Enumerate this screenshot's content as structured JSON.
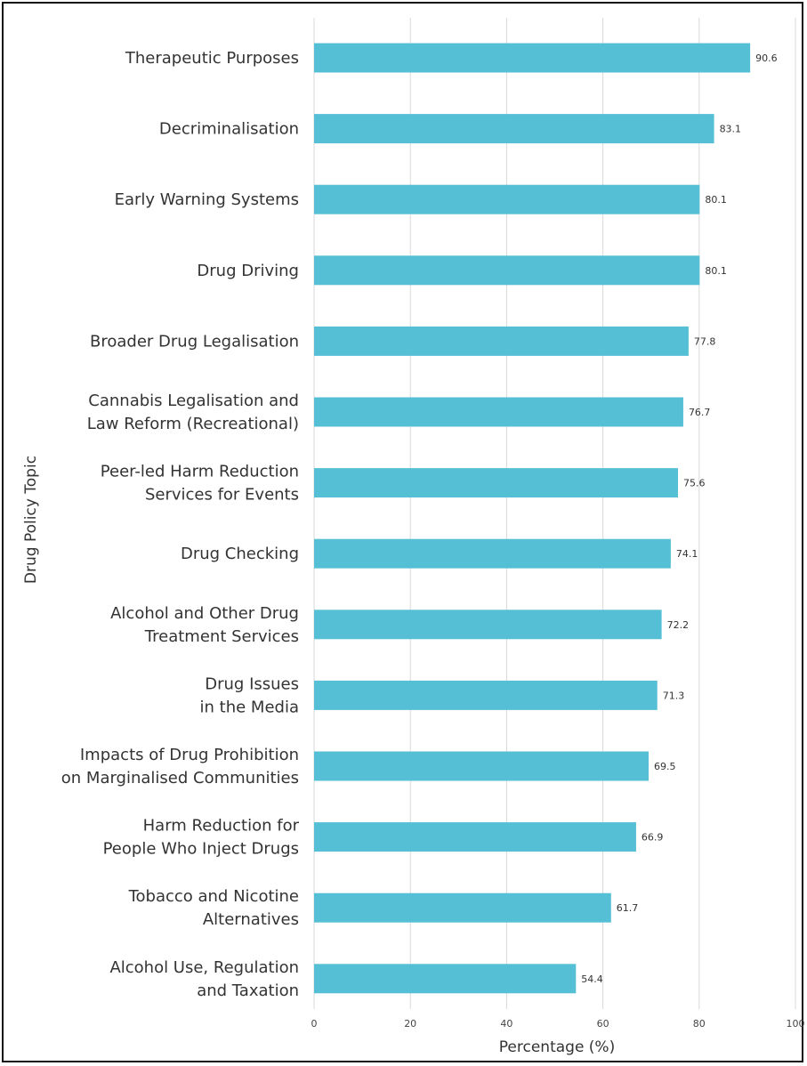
{
  "chart_data": {
    "type": "bar",
    "orientation": "horizontal",
    "xlabel": "Percentage (%)",
    "ylabel": "Drug Policy Topic",
    "xlim": [
      0,
      100
    ],
    "xticks": [
      0,
      20,
      40,
      60,
      80,
      100
    ],
    "grid": "vertical",
    "bar_color": "#55bfd6",
    "categories": [
      "Therapeutic Purposes",
      "Decriminalisation",
      "Early Warning Systems",
      "Drug Driving",
      "Broader Drug Legalisation",
      "Cannabis Legalisation and\nLaw Reform (Recreational)",
      "Peer-led Harm Reduction\nServices for Events",
      "Drug Checking",
      "Alcohol and Other Drug\nTreatment Services",
      "Drug Issues\nin the Media",
      "Impacts of Drug Prohibition\non Marginalised Communities",
      "Harm Reduction for\nPeople Who Inject Drugs",
      "Tobacco and Nicotine\nAlternatives",
      "Alcohol Use, Regulation\nand Taxation"
    ],
    "values": [
      90.6,
      83.1,
      80.1,
      80.1,
      77.8,
      76.7,
      75.6,
      74.1,
      72.2,
      71.3,
      69.5,
      66.9,
      61.7,
      54.4
    ],
    "value_labels": [
      "90.6",
      "83.1",
      "80.1",
      "80.1",
      "77.8",
      "76.7",
      "75.6",
      "74.1",
      "72.2",
      "71.3",
      "69.5",
      "66.9",
      "61.7",
      "54.4"
    ]
  }
}
